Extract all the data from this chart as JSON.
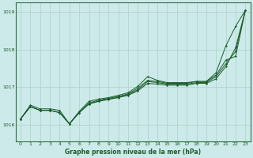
{
  "title": "Graphe pression niveau de la mer (hPa)",
  "background_color": "#cdeaea",
  "grid_color": "#b0d4cc",
  "line_color": "#1a5c2a",
  "spine_color": "#2d6e3a",
  "xlim": [
    -0.5,
    23.5
  ],
  "ylim": [
    1015.55,
    1019.25
  ],
  "yticks": [
    1016,
    1017,
    1018,
    1019
  ],
  "ytick_labels": [
    "1016",
    "1017",
    "1018",
    "1019"
  ],
  "xticks": [
    0,
    1,
    2,
    3,
    4,
    5,
    6,
    7,
    8,
    9,
    10,
    11,
    12,
    13,
    14,
    15,
    16,
    17,
    18,
    19,
    20,
    21,
    22,
    23
  ],
  "series": [
    [
      1016.15,
      1016.52,
      1016.42,
      1016.42,
      1016.38,
      1016.02,
      1016.35,
      1016.62,
      1016.68,
      1016.72,
      1016.78,
      1016.85,
      1017.02,
      1017.28,
      1017.18,
      1017.12,
      1017.12,
      1017.12,
      1017.15,
      1017.15,
      1017.38,
      1018.1,
      1018.62,
      1019.05
    ],
    [
      1016.15,
      1016.48,
      1016.38,
      1016.38,
      1016.32,
      1016.02,
      1016.32,
      1016.58,
      1016.65,
      1016.7,
      1016.75,
      1016.82,
      1016.97,
      1017.18,
      1017.15,
      1017.1,
      1017.1,
      1017.1,
      1017.15,
      1017.15,
      1017.32,
      1017.72,
      1017.82,
      1019.05
    ],
    [
      1016.15,
      1016.48,
      1016.38,
      1016.38,
      1016.32,
      1016.02,
      1016.32,
      1016.55,
      1016.63,
      1016.68,
      1016.73,
      1016.8,
      1016.93,
      1017.15,
      1017.12,
      1017.08,
      1017.08,
      1017.08,
      1017.12,
      1017.12,
      1017.28,
      1017.62,
      1017.95,
      1019.05
    ],
    [
      1016.15,
      1016.48,
      1016.38,
      1016.38,
      1016.32,
      1016.02,
      1016.32,
      1016.55,
      1016.62,
      1016.67,
      1016.72,
      1016.78,
      1016.9,
      1017.1,
      1017.08,
      1017.05,
      1017.05,
      1017.05,
      1017.1,
      1017.1,
      1017.22,
      1017.55,
      1018.05,
      1019.05
    ]
  ]
}
